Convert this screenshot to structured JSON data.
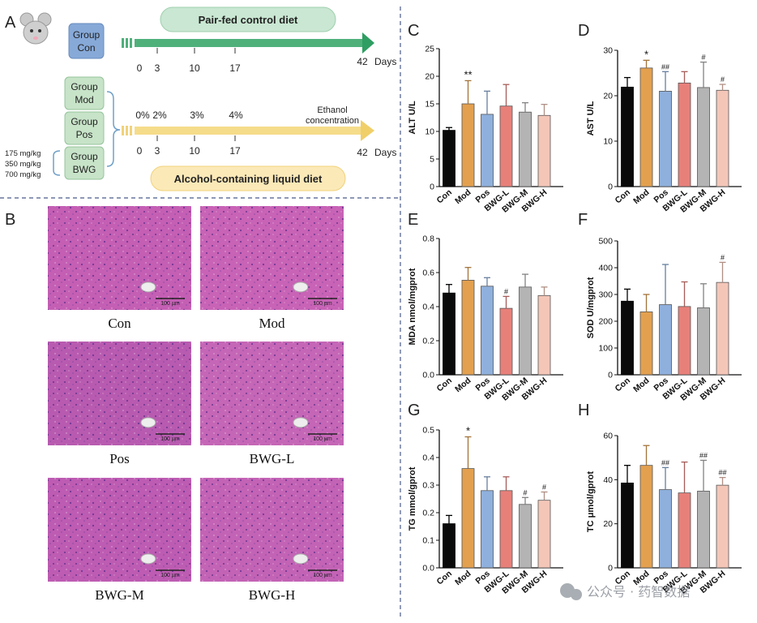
{
  "panel_labels": {
    "a": "A",
    "b": "B",
    "c": "C",
    "d": "D",
    "e": "E",
    "f": "F",
    "g": "G",
    "h": "H"
  },
  "design": {
    "control_group": {
      "line1": "Group",
      "line2": "Con"
    },
    "model_groups": [
      {
        "line1": "Group",
        "line2": "Mod"
      },
      {
        "line1": "Group",
        "line2": "Pos"
      },
      {
        "line1": "Group",
        "line2": "BWG"
      }
    ],
    "doses": [
      "175 mg/kg",
      "350 mg/kg",
      "700 mg/kg"
    ],
    "pair_fed_label": "Pair-fed control diet",
    "alcohol_label": "Alcohol-containing liquid diet",
    "ethanol_label_1": "Ethanol",
    "ethanol_label_2": "concentration",
    "days_label": "Days",
    "timeline_days": [
      "0",
      "3",
      "10",
      "17"
    ],
    "end_day": "42",
    "concentrations": [
      "0%",
      "2%",
      "3%",
      "4%"
    ]
  },
  "histology": {
    "scale_bar": "100 µm",
    "images": [
      {
        "label": "Con",
        "color": "#c45fb4"
      },
      {
        "label": "Mod",
        "color": "#c863b6"
      },
      {
        "label": "Pos",
        "color": "#b85bb0"
      },
      {
        "label": "BWG-L",
        "color": "#c566b6"
      },
      {
        "label": "BWG-M",
        "color": "#bd5cb2"
      },
      {
        "label": "BWG-H",
        "color": "#c363b5"
      }
    ]
  },
  "watermark": "公众号 · 药智数据",
  "chart_data": [
    {
      "type": "bar",
      "panel": "C",
      "ylabel": "ALT U/L",
      "ylim": [
        0,
        25
      ],
      "yticks": [
        0,
        5,
        10,
        15,
        20,
        25
      ],
      "categories": [
        "Con",
        "Mod",
        "Pos",
        "BWG-L",
        "BWG-M",
        "BWG-H"
      ],
      "values": [
        10.2,
        15.0,
        13.1,
        14.6,
        13.5,
        12.9
      ],
      "errors": [
        0.5,
        4.2,
        4.2,
        3.9,
        1.7,
        2.0
      ],
      "annotations": [
        "",
        "**",
        "",
        "",
        "",
        ""
      ]
    },
    {
      "type": "bar",
      "panel": "D",
      "ylabel": "AST U/L",
      "ylim": [
        0,
        30
      ],
      "yticks": [
        0,
        10,
        20,
        30
      ],
      "categories": [
        "Con",
        "Mod",
        "Pos",
        "BWG-L",
        "BWG-M",
        "BWG-H"
      ],
      "values": [
        21.9,
        26.1,
        21.0,
        22.8,
        21.8,
        21.2
      ],
      "errors": [
        2.1,
        1.7,
        4.3,
        2.5,
        5.6,
        1.3
      ],
      "annotations": [
        "",
        "*",
        "##",
        "",
        "#",
        "#"
      ]
    },
    {
      "type": "bar",
      "panel": "E",
      "ylabel": "MDA nmol/mgprot",
      "ylim": [
        0,
        0.8
      ],
      "yticks": [
        0.0,
        0.2,
        0.4,
        0.6,
        0.8
      ],
      "categories": [
        "Con",
        "Mod",
        "Pos",
        "BWG-L",
        "BWG-M",
        "BWG-H"
      ],
      "values": [
        0.48,
        0.555,
        0.52,
        0.39,
        0.515,
        0.465
      ],
      "errors": [
        0.05,
        0.075,
        0.05,
        0.07,
        0.075,
        0.05
      ],
      "annotations": [
        "",
        "",
        "",
        "#",
        "",
        ""
      ]
    },
    {
      "type": "bar",
      "panel": "F",
      "ylabel": "SOD U/mgprot",
      "ylim": [
        0,
        500
      ],
      "yticks": [
        0,
        100,
        200,
        300,
        400,
        500
      ],
      "categories": [
        "Con",
        "Mod",
        "Pos",
        "BWG-L",
        "BWG-M",
        "BWG-H"
      ],
      "values": [
        275,
        235,
        262,
        255,
        250,
        345
      ],
      "errors": [
        45,
        65,
        150,
        92,
        90,
        75
      ],
      "annotations": [
        "",
        "",
        "",
        "",
        "",
        "#"
      ]
    },
    {
      "type": "bar",
      "panel": "G",
      "ylabel": "TG mmol/gprot",
      "ylim": [
        0,
        0.5
      ],
      "yticks": [
        0.0,
        0.1,
        0.2,
        0.3,
        0.4,
        0.5
      ],
      "categories": [
        "Con",
        "Mod",
        "Pos",
        "BWG-L",
        "BWG-M",
        "BWG-H"
      ],
      "values": [
        0.16,
        0.36,
        0.28,
        0.28,
        0.23,
        0.245
      ],
      "errors": [
        0.03,
        0.115,
        0.05,
        0.05,
        0.025,
        0.03
      ],
      "annotations": [
        "",
        "*",
        "",
        "",
        "#",
        "#"
      ]
    },
    {
      "type": "bar",
      "panel": "H",
      "ylabel": "TC μmol/gprot",
      "ylim": [
        0,
        60
      ],
      "yticks": [
        0,
        20,
        40,
        60
      ],
      "categories": [
        "Con",
        "Mod",
        "Pos",
        "BWG-L",
        "BWG-M",
        "BWG-H"
      ],
      "values": [
        38.5,
        46.5,
        35.5,
        34.0,
        34.8,
        37.5
      ],
      "errors": [
        8,
        9,
        10,
        14,
        14,
        3.5
      ],
      "annotations": [
        "",
        "",
        "##",
        "",
        "##",
        "##"
      ]
    }
  ],
  "bar_colors": [
    "#0a0a0a",
    "#e3a04f",
    "#8fb0dc",
    "#e8807a",
    "#b4b4b4",
    "#f4c6b8"
  ]
}
